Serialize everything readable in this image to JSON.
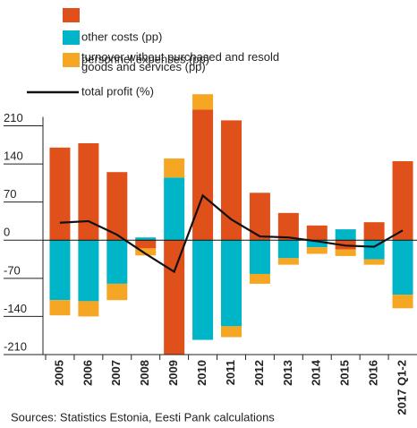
{
  "chart_data": {
    "type": "bar",
    "categories": [
      "2005",
      "2006",
      "2007",
      "2008",
      "2009",
      "2010",
      "2011",
      "2012",
      "2013",
      "2014",
      "2015",
      "2016",
      "2017 Q1-2"
    ],
    "series": [
      {
        "name": "turnover without purchased and resold goods and services (pp)",
        "color": "#e0501a",
        "values": [
          170,
          178,
          125,
          -15,
          -215,
          240,
          220,
          87,
          50,
          27,
          -17,
          33,
          145
        ]
      },
      {
        "name": "other costs (pp)",
        "color": "#00b5c8",
        "values": [
          -110,
          -112,
          -80,
          5,
          115,
          -183,
          -158,
          -62,
          -33,
          -13,
          20,
          -35,
          -100
        ]
      },
      {
        "name": "personnel expenses (pp)",
        "color": "#f5a623",
        "values": [
          -28,
          -28,
          -30,
          -13,
          35,
          28,
          -20,
          -18,
          -12,
          -12,
          -12,
          -10,
          -25
        ]
      },
      {
        "name": "total profit (%)",
        "type": "line",
        "color": "#111111",
        "values": [
          32,
          35,
          10,
          -25,
          -58,
          82,
          38,
          7,
          5,
          -2,
          -10,
          -12,
          18
        ]
      }
    ],
    "ylim": [
      -210,
      270
    ],
    "yticks": [
      -210,
      -140,
      -70,
      0,
      70,
      140,
      210
    ],
    "source": "Sources: Statistics Estonia, Eesti Pank calculations"
  }
}
